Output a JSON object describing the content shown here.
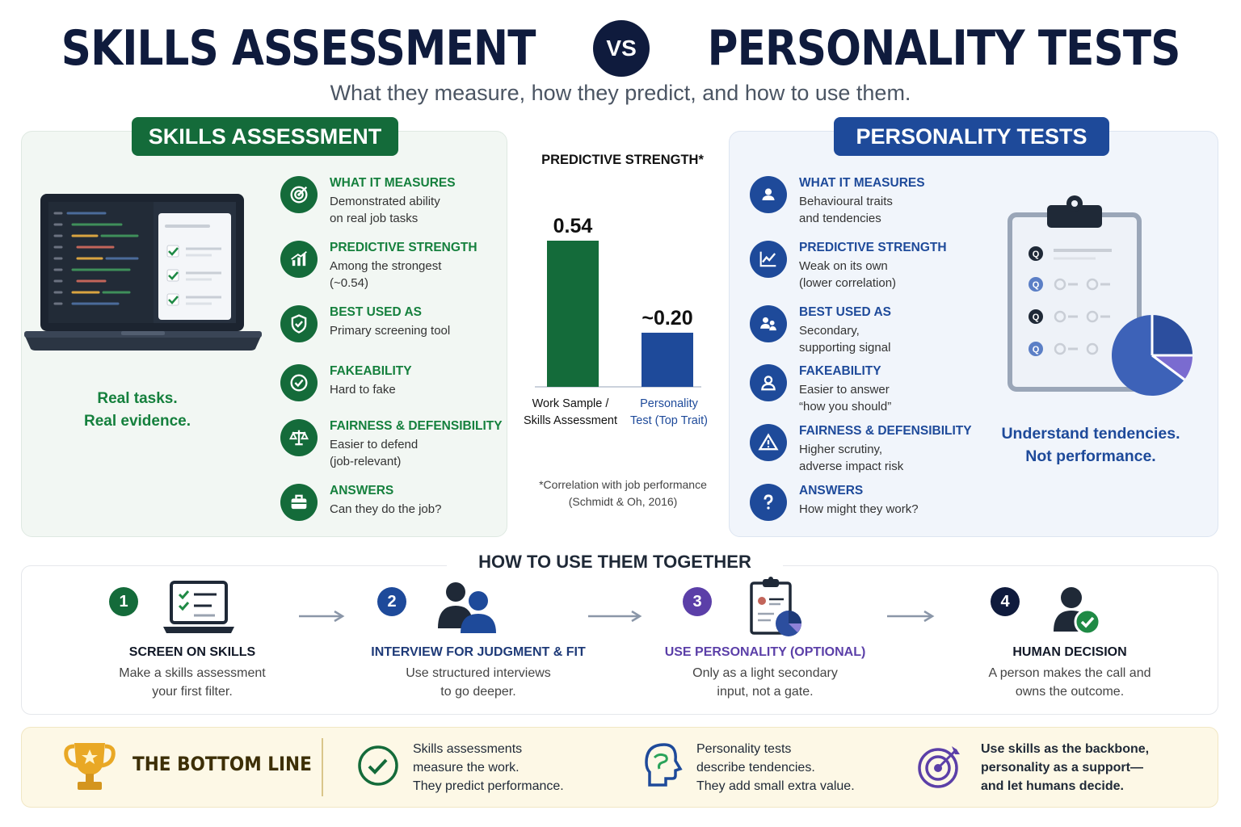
{
  "title": {
    "left": "SKILLS ASSESSMENT",
    "vs": "VS",
    "right": "PERSONALITY TESTS",
    "subtitle": "What they measure, how they predict, and how to use them."
  },
  "colors": {
    "green": "#146b3a",
    "blue": "#1e4a9a",
    "purple": "#5b3fa8",
    "navy": "#0f1b3d"
  },
  "skills": {
    "header": "SKILLS ASSESSMENT",
    "tagline": [
      "Real tasks.",
      "Real evidence."
    ],
    "items": [
      {
        "icon": "target-icon",
        "heading": "WHAT IT MEASURES",
        "lines": [
          "Demonstrated ability",
          "on real job tasks"
        ]
      },
      {
        "icon": "bar-chart-icon",
        "heading": "PREDICTIVE STRENGTH",
        "lines": [
          "Among the strongest",
          "(~0.54)"
        ]
      },
      {
        "icon": "shield-check-icon",
        "heading": "BEST USED AS",
        "lines": [
          "Primary screening tool"
        ]
      },
      {
        "icon": "check-circle-icon",
        "heading": "FAKEABILITY",
        "lines": [
          "Hard to fake"
        ]
      },
      {
        "icon": "scales-icon",
        "heading": "FAIRNESS & DEFENSIBILITY",
        "lines": [
          "Easier to defend",
          "(job-relevant)"
        ]
      },
      {
        "icon": "briefcase-icon",
        "heading": "ANSWERS",
        "lines": [
          "Can they do the job?"
        ]
      }
    ]
  },
  "personality": {
    "header": "PERSONALITY TESTS",
    "tagline": [
      "Understand tendencies.",
      "Not performance."
    ],
    "items": [
      {
        "icon": "person-icon",
        "heading": "WHAT IT MEASURES",
        "lines": [
          "Behavioural traits",
          "and tendencies"
        ]
      },
      {
        "icon": "line-chart-icon",
        "heading": "PREDICTIVE STRENGTH",
        "lines": [
          "Weak on its own",
          "(lower correlation)"
        ]
      },
      {
        "icon": "people-icon",
        "heading": "BEST USED AS",
        "lines": [
          "Secondary,",
          "supporting signal"
        ]
      },
      {
        "icon": "user-icon",
        "heading": "FAKEABILITY",
        "lines": [
          "Easier to answer",
          "“how you should”"
        ]
      },
      {
        "icon": "warning-icon",
        "heading": "FAIRNESS & DEFENSIBILITY",
        "lines": [
          "Higher scrutiny,",
          "adverse impact risk"
        ]
      },
      {
        "icon": "question-icon",
        "heading": "ANSWERS",
        "lines": [
          "How might they work?"
        ]
      }
    ]
  },
  "chart_data": {
    "type": "bar",
    "title": "PREDICTIVE STRENGTH*",
    "categories": [
      "Work Sample / Skills Assessment",
      "Personality Test (Top Trait)"
    ],
    "category_lines": [
      [
        "Work Sample /",
        "Skills Assessment"
      ],
      [
        "Personality",
        "Test (Top Trait)"
      ]
    ],
    "values": [
      0.54,
      0.2
    ],
    "value_labels": [
      "0.54",
      "~0.20"
    ],
    "colors": [
      "#146b3a",
      "#1e4a9a"
    ],
    "ylim": [
      0,
      0.6
    ],
    "grid": false,
    "note": [
      "*Correlation with job performance",
      "(Schmidt & Oh, 2016)"
    ]
  },
  "howto": {
    "title": "HOW TO USE THEM TOGETHER",
    "steps": [
      {
        "num": "1",
        "icon": "laptop-checklist-icon",
        "title": "SCREEN ON SKILLS",
        "lines": [
          "Make a skills assessment",
          "your first filter."
        ]
      },
      {
        "num": "2",
        "icon": "two-people-icon",
        "title": "INTERVIEW FOR JUDGMENT & FIT",
        "lines": [
          "Use structured interviews",
          "to go deeper."
        ]
      },
      {
        "num": "3",
        "icon": "clipboard-pie-icon",
        "title": "USE PERSONALITY (OPTIONAL)",
        "lines": [
          "Only as a light secondary",
          "input, not a gate."
        ]
      },
      {
        "num": "4",
        "icon": "person-check-icon",
        "title": "HUMAN DECISION",
        "lines": [
          "A person makes the call and",
          "owns the outcome."
        ]
      }
    ]
  },
  "bottom": {
    "title": "THE BOTTOM LINE",
    "points": [
      {
        "icon": "check-circle-icon",
        "lines": [
          "Skills assessments",
          "measure the work.",
          "They predict performance."
        ]
      },
      {
        "icon": "head-profile-icon",
        "lines": [
          "Personality tests",
          "describe tendencies.",
          "They add small extra value."
        ]
      },
      {
        "icon": "target-arrow-icon",
        "lines": [
          "Use skills as the backbone,",
          "personality as a support—",
          "and let humans decide."
        ]
      }
    ]
  }
}
